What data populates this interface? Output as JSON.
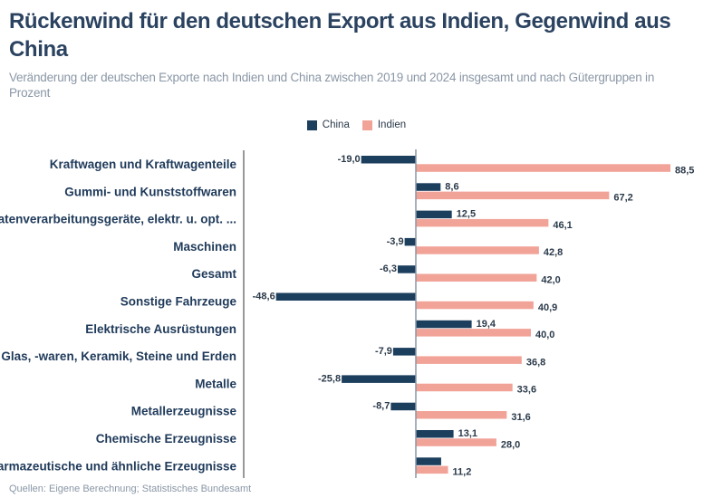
{
  "title": "Rückenwind für den deutschen Export aus Indien, Gegenwind aus China",
  "subtitle": "Veränderung der deutschen Exporte nach Indien und China zwischen 2019 und 2024 insgesamt und nach Gütergruppen in Prozent",
  "source": "Quellen: Eigene Berechnung; Statistisches Bundesamt",
  "colors": {
    "China": "#1d3f5e",
    "Indien": "#f2a398"
  },
  "chart_data": {
    "type": "bar",
    "orientation": "horizontal",
    "grouped": true,
    "legend": "top-center",
    "grid": false,
    "categories": [
      "Kraftwagen und Kraftwagenteile",
      "Gummi- und Kunststoffwaren",
      "Datenverarbeitungsgeräte, elektr. u. opt. ...",
      "Maschinen",
      "Gesamt",
      "Sonstige Fahrzeuge",
      "Elektrische Ausrüstungen",
      "Glas, -waren, Keramik, Steine und Erden",
      "Metalle",
      "Metallerzeugnisse",
      "Chemische Erzeugnisse",
      "Pharmazeutische und ähnliche Erzeugnisse"
    ],
    "series": [
      {
        "name": "China",
        "values": [
          -19.0,
          8.6,
          12.5,
          -3.9,
          -6.3,
          -48.6,
          19.4,
          -7.9,
          -25.8,
          -8.7,
          13.1,
          8.8
        ],
        "labels": [
          "-19,0",
          "8,6",
          "12,5",
          "-3,9",
          "-6,3",
          "-48,6",
          "19,4",
          "-7,9",
          "-25,8",
          "-8,7",
          "13,1",
          ""
        ]
      },
      {
        "name": "Indien",
        "values": [
          88.5,
          67.2,
          46.1,
          42.8,
          42.0,
          40.9,
          40.0,
          36.8,
          33.6,
          31.6,
          28.0,
          11.2
        ],
        "labels": [
          "88,5",
          "67,2",
          "46,1",
          "42,8",
          "42,0",
          "40,9",
          "40,0",
          "36,8",
          "33,6",
          "31,6",
          "28,0",
          "11,2"
        ]
      }
    ],
    "xlabel": "",
    "ylabel": "",
    "xlim": [
      -60,
      100
    ]
  }
}
